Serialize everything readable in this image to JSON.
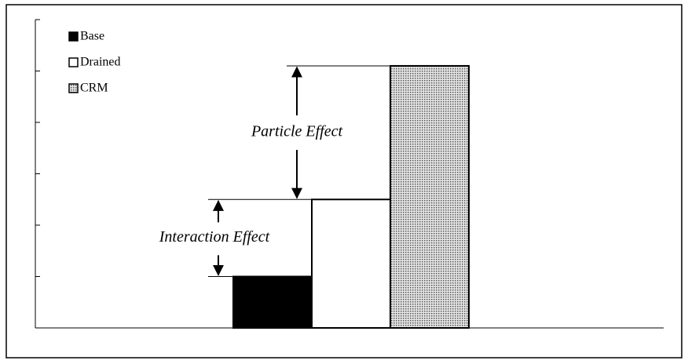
{
  "chart_data": {
    "type": "bar",
    "categories": [
      "Base",
      "Drained",
      "CRM"
    ],
    "values": [
      1,
      2.5,
      5.1
    ],
    "colors": [
      "#000000",
      "#ffffff",
      "#bdbdbd"
    ],
    "fills": [
      "solid",
      "solid",
      "dotted"
    ],
    "ylim": [
      0,
      6
    ],
    "yticks": [
      0,
      1,
      2,
      3,
      4,
      5,
      6
    ],
    "legend": "upper left",
    "annotations": [
      "Particle Effect",
      "Interaction Effect"
    ]
  }
}
